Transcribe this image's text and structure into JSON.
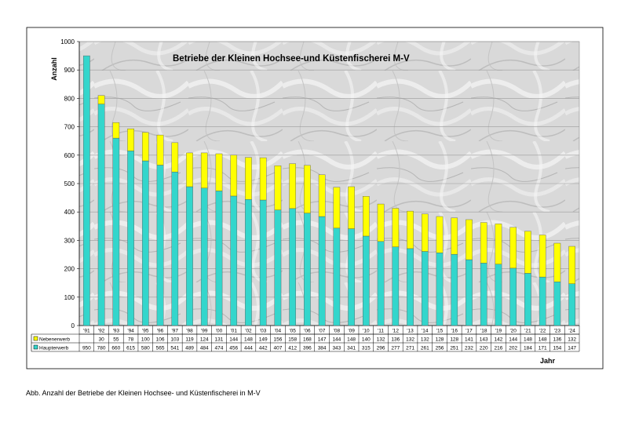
{
  "caption": "Abb. Anzahl der Betriebe der Kleinen Hochsee- und Küstenfischerei in M-V",
  "chart_data": {
    "type": "bar",
    "stacked": true,
    "title": "Betriebe der Kleinen Hochsee-und Küstenfischerei M-V",
    "xlabel": "Jahr",
    "ylabel": "Anzahl",
    "ylim": [
      0,
      1000
    ],
    "yticks": [
      0,
      100,
      200,
      300,
      400,
      500,
      600,
      700,
      800,
      900,
      1000
    ],
    "grid": true,
    "categories": [
      "'91",
      "'92",
      "'93",
      "'94",
      "'95",
      "'96",
      "'97",
      "'98",
      "'99",
      "'00",
      "'01",
      "'02",
      "'03",
      "'04",
      "'05",
      "'06",
      "'07",
      "'08",
      "'09",
      "'10",
      "'11",
      "'12",
      "'13",
      "'14",
      "'15",
      "'16",
      "'17",
      "'18",
      "'19",
      "'20",
      "'21",
      "'22",
      "'23",
      "'24"
    ],
    "series": [
      {
        "name": "Haupterwerb",
        "color": "#33d6cc",
        "values": [
          950,
          780,
          660,
          615,
          580,
          565,
          541,
          489,
          484,
          474,
          456,
          444,
          442,
          407,
          412,
          396,
          384,
          343,
          341,
          315,
          296,
          277,
          271,
          261,
          256,
          251,
          232,
          220,
          216,
          202,
          184,
          171,
          154,
          147
        ]
      },
      {
        "name": "Nebenerwerb",
        "color": "#ffff00",
        "values": [
          null,
          30,
          55,
          78,
          100,
          106,
          103,
          119,
          124,
          131,
          144,
          148,
          149,
          156,
          158,
          168,
          147,
          144,
          148,
          140,
          132,
          136,
          132,
          132,
          128,
          128,
          141,
          143,
          142,
          144,
          148,
          148,
          136,
          132
        ]
      }
    ],
    "legend": "table-below"
  }
}
